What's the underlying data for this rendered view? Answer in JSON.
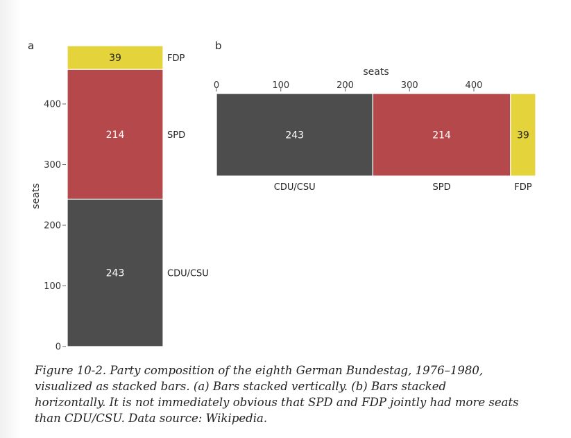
{
  "chart_data": [
    {
      "type": "bar",
      "panel_label": "a",
      "orientation": "vertical-stacked",
      "axis_label": "seats",
      "ylim": [
        0,
        496
      ],
      "ticks": [
        0,
        100,
        200,
        300,
        400
      ],
      "series": [
        {
          "name": "CDU/CSU",
          "value": 243,
          "color": "#4d4d4d"
        },
        {
          "name": "SPD",
          "value": 214,
          "color": "#b5484a"
        },
        {
          "name": "FDP",
          "value": 39,
          "color": "#e4d33a"
        }
      ]
    },
    {
      "type": "bar",
      "panel_label": "b",
      "orientation": "horizontal-stacked",
      "axis_label": "seats",
      "xlim": [
        0,
        496
      ],
      "ticks": [
        0,
        100,
        200,
        300,
        400
      ],
      "series": [
        {
          "name": "CDU/CSU",
          "value": 243,
          "color": "#4d4d4d"
        },
        {
          "name": "SPD",
          "value": 214,
          "color": "#b5484a"
        },
        {
          "name": "FDP",
          "value": 39,
          "color": "#e4d33a"
        }
      ]
    }
  ],
  "caption": "Figure 10-2. Party composition of the eighth German Bundestag, 1976–1980, visualized as stacked bars. (a) Bars stacked vertically. (b) Bars stacked horizontally. It is not immediately obvious that SPD and FDP jointly had more seats than CDU/CSU. Data source: Wikipedia."
}
